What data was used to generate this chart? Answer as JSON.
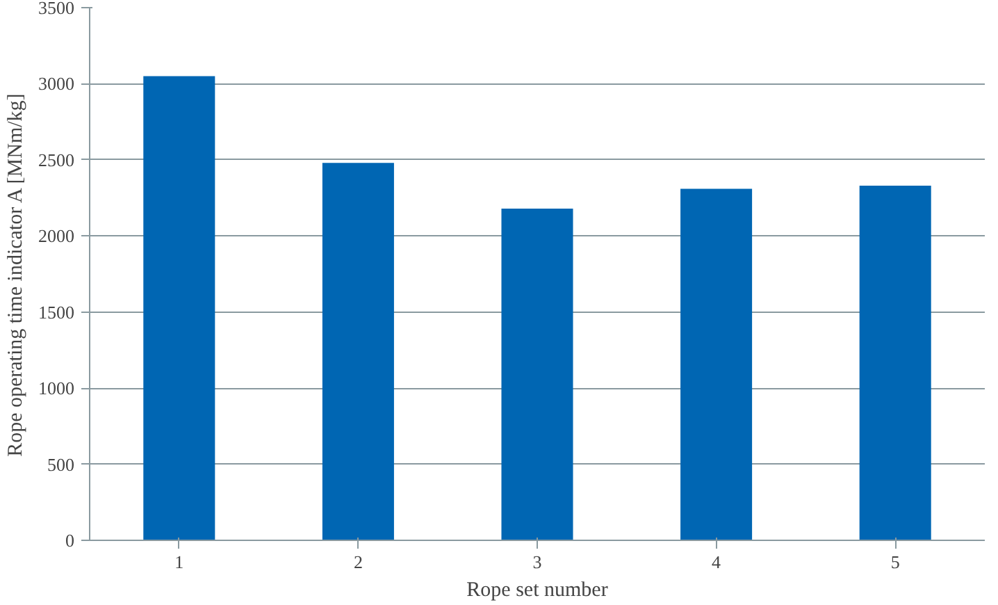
{
  "chart_data": {
    "type": "bar",
    "xlabel": "Rope set number",
    "ylabel": "Rope operating time indicator A [MNm/kg]",
    "categories": [
      "1",
      "2",
      "3",
      "4",
      "5"
    ],
    "values": [
      3050,
      2480,
      2180,
      2310,
      2330
    ],
    "color": "#0066b3",
    "ylim": [
      0,
      3500
    ],
    "yticks": [
      0,
      500,
      1000,
      1500,
      2000,
      2500,
      3000,
      3500
    ],
    "grid": "y"
  }
}
